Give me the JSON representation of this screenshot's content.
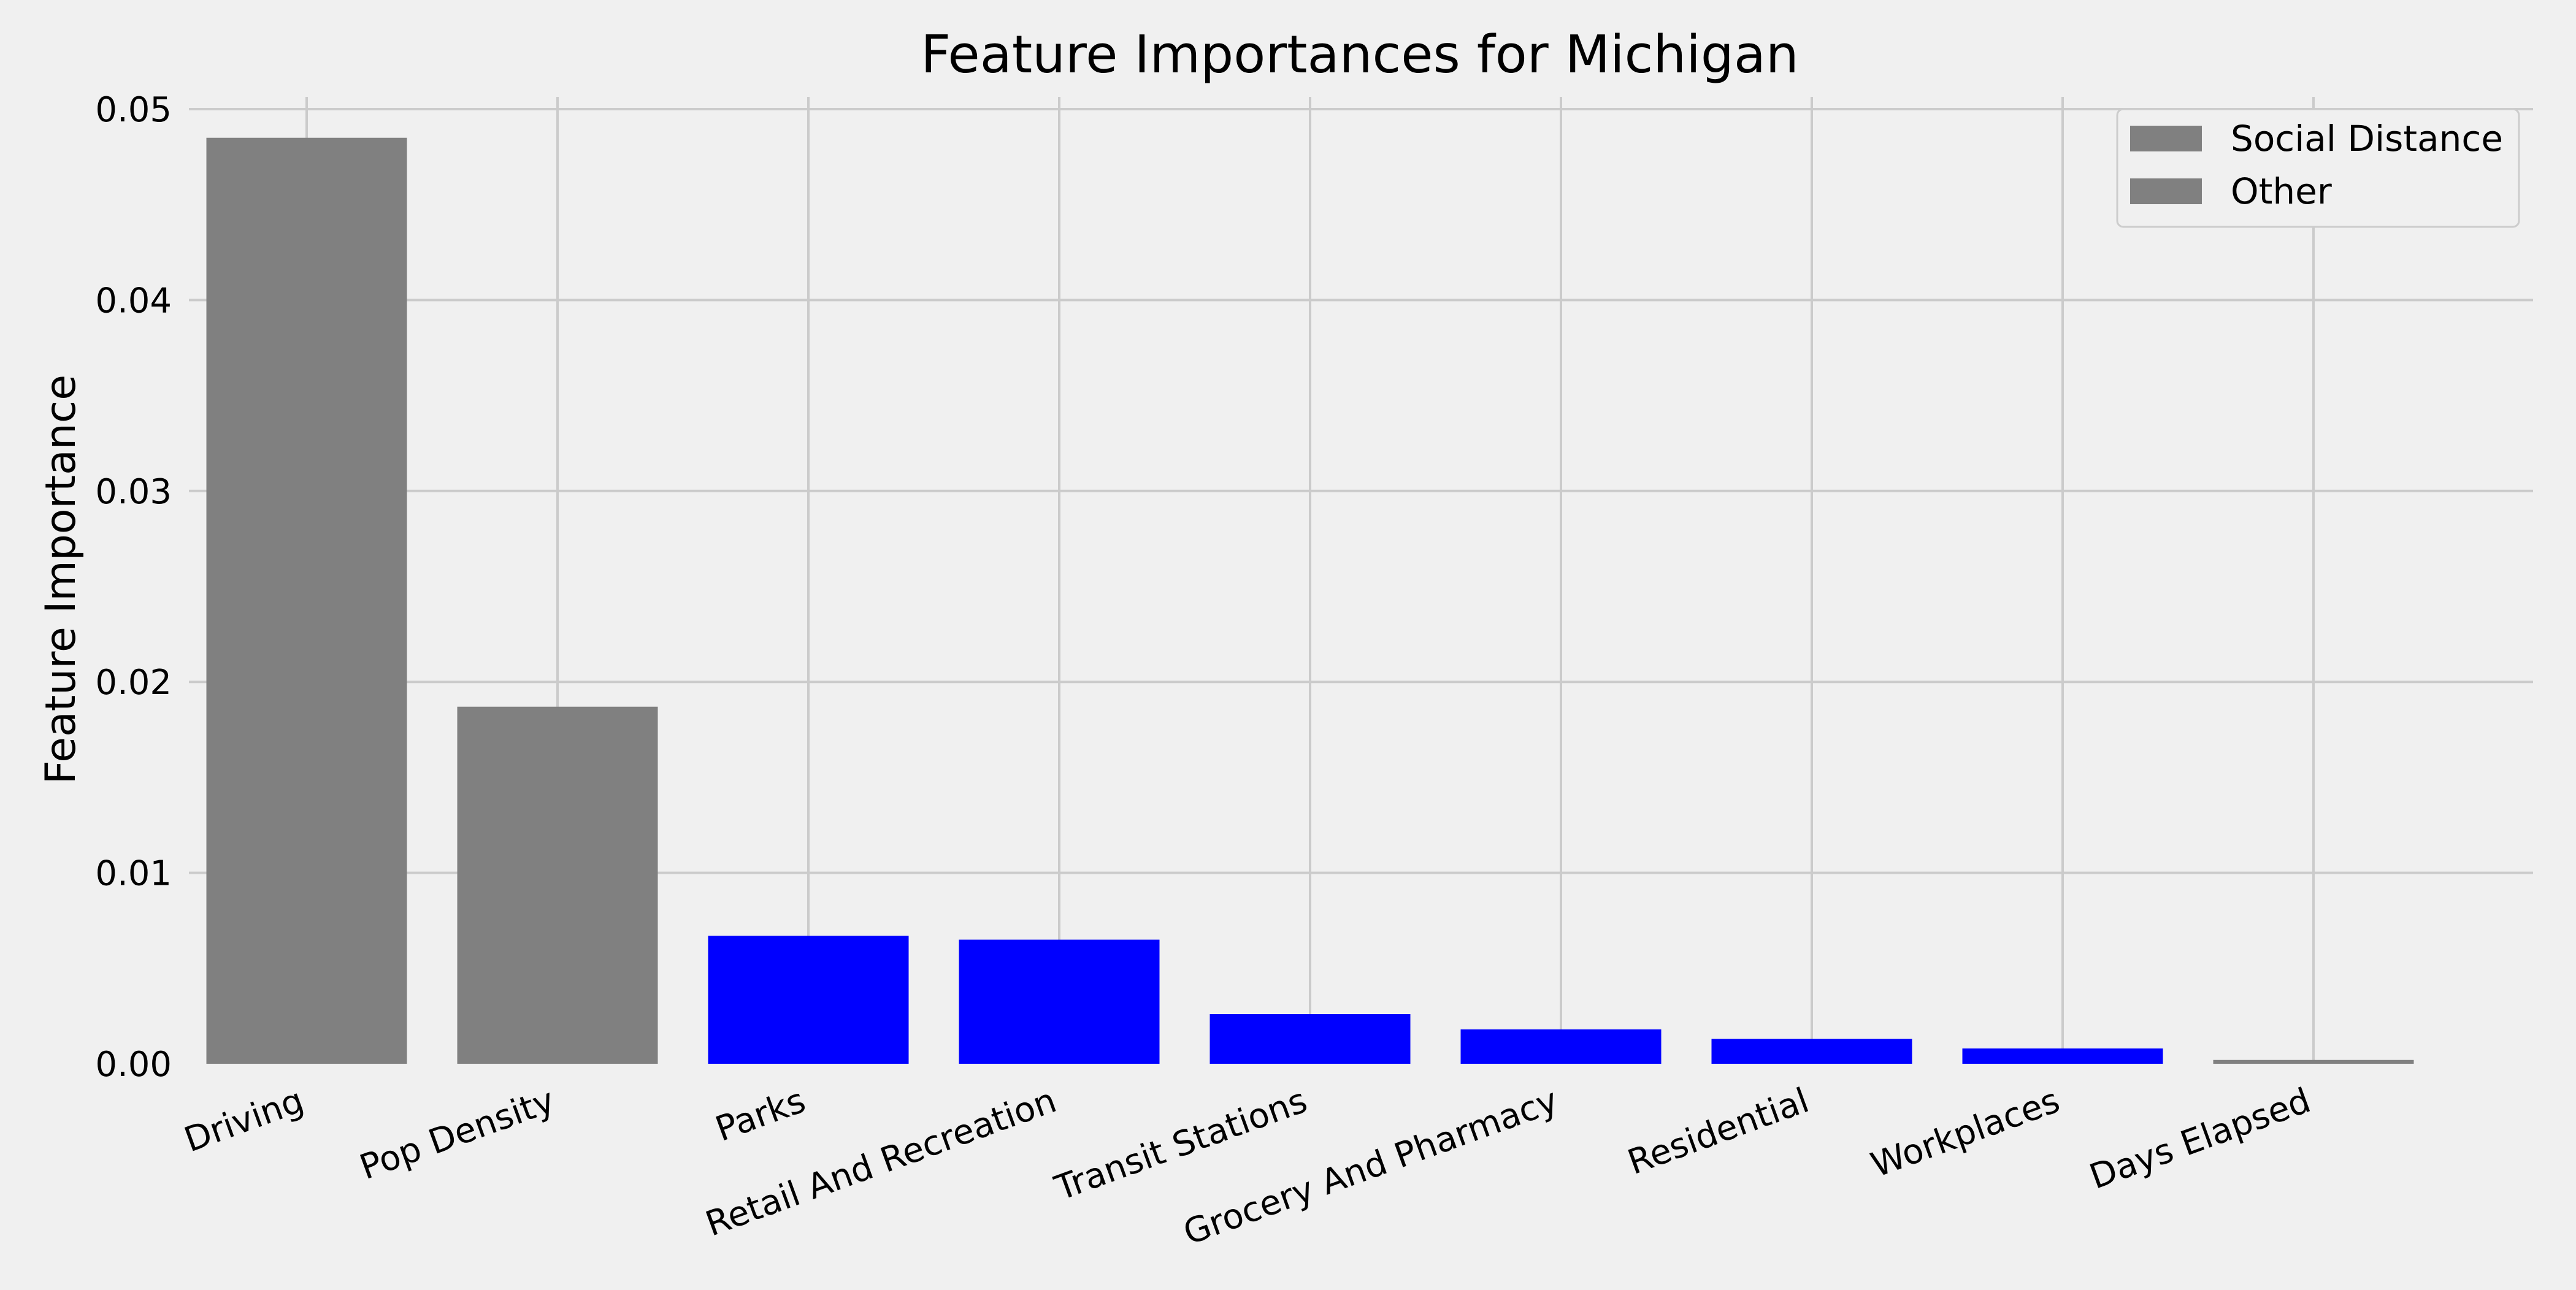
{
  "chart_data": {
    "type": "bar",
    "title": "Feature Importances for Michigan",
    "xlabel": "",
    "ylabel": "Feature Importance",
    "categories": [
      "Driving",
      "Pop Density",
      "Parks",
      "Retail And Recreation",
      "Transit Stations",
      "Grocery And Pharmacy",
      "Residential",
      "Workplaces",
      "Days Elapsed"
    ],
    "values": [
      0.0485,
      0.0187,
      0.0067,
      0.0065,
      0.0026,
      0.0018,
      0.0013,
      0.0008,
      0.0002
    ],
    "bar_groups": [
      "Other",
      "Other",
      "Social Distance",
      "Social Distance",
      "Social Distance",
      "Social Distance",
      "Social Distance",
      "Social Distance",
      "Other"
    ],
    "ylim": [
      0,
      0.05
    ],
    "yticks": [
      "0.00",
      "0.01",
      "0.02",
      "0.03",
      "0.04",
      "0.05"
    ],
    "grid": true,
    "legend": {
      "placement": "top-right",
      "entries": [
        {
          "label": "Social Distance",
          "color": "#808080"
        },
        {
          "label": "Other",
          "color": "#808080"
        }
      ]
    },
    "colors": {
      "Social Distance": "#0000ff",
      "Other": "#808080",
      "background": "#f0f0f0",
      "grid": "#cbcbcb"
    }
  }
}
